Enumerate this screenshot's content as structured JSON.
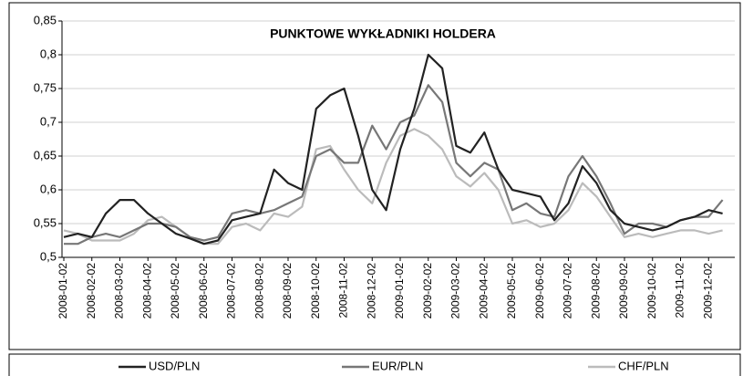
{
  "chart_data": {
    "type": "line",
    "title": "PUNKTOWE WYKŁADNIKI HOLDERA",
    "categories": [
      "2008-01-02",
      null,
      "2008-02-02",
      null,
      "2008-03-02",
      null,
      "2008-04-02",
      null,
      "2008-05-02",
      null,
      "2008-06-02",
      null,
      "2008-07-02",
      null,
      "2008-08-02",
      null,
      "2008-09-02",
      null,
      "2008-10-02",
      null,
      "2008-11-02",
      null,
      "2008-12-02",
      null,
      "2009-01-02",
      null,
      "2009-02-02",
      null,
      "2009-03-02",
      null,
      "2009-04-02",
      null,
      "2009-05-02",
      null,
      "2009-06-02",
      null,
      "2009-07-02",
      null,
      "2009-08-02",
      null,
      "2009-09-02",
      null,
      "2009-10-02",
      null,
      "2009-11-02",
      null,
      "2009-12-02",
      null
    ],
    "series": [
      {
        "name": "USD/PLN",
        "color": "#222222",
        "values": [
          0.53,
          0.535,
          0.53,
          0.565,
          0.585,
          0.585,
          0.565,
          0.55,
          0.535,
          0.528,
          0.52,
          0.525,
          0.555,
          0.56,
          0.565,
          0.63,
          0.61,
          0.6,
          0.72,
          0.74,
          0.75,
          0.68,
          0.6,
          0.57,
          0.66,
          0.72,
          0.8,
          0.78,
          0.665,
          0.655,
          0.685,
          0.63,
          0.6,
          0.595,
          0.59,
          0.555,
          0.58,
          0.635,
          0.61,
          0.57,
          0.55,
          0.545,
          0.54,
          0.545,
          0.555,
          0.56,
          0.57,
          0.565
        ]
      },
      {
        "name": "EUR/PLN",
        "color": "#777777",
        "values": [
          0.52,
          0.52,
          0.53,
          0.535,
          0.53,
          0.54,
          0.55,
          0.55,
          0.545,
          0.53,
          0.525,
          0.53,
          0.565,
          0.57,
          0.565,
          0.57,
          0.58,
          0.59,
          0.65,
          0.66,
          0.64,
          0.64,
          0.695,
          0.66,
          0.7,
          0.71,
          0.755,
          0.73,
          0.64,
          0.62,
          0.64,
          0.63,
          0.57,
          0.58,
          0.565,
          0.56,
          0.62,
          0.65,
          0.62,
          0.58,
          0.535,
          0.55,
          0.55,
          0.545,
          0.555,
          0.56,
          0.56,
          0.585
        ]
      },
      {
        "name": "CHF/PLN",
        "color": "#bbbbbb",
        "values": [
          0.54,
          0.535,
          0.525,
          0.525,
          0.525,
          0.535,
          0.555,
          0.56,
          0.545,
          0.53,
          0.52,
          0.52,
          0.545,
          0.55,
          0.54,
          0.565,
          0.56,
          0.575,
          0.66,
          0.665,
          0.63,
          0.6,
          0.58,
          0.64,
          0.68,
          0.69,
          0.68,
          0.66,
          0.62,
          0.605,
          0.625,
          0.6,
          0.55,
          0.555,
          0.545,
          0.55,
          0.57,
          0.61,
          0.59,
          0.56,
          0.53,
          0.535,
          0.53,
          0.535,
          0.54,
          0.54,
          0.535,
          0.54
        ]
      }
    ],
    "ylim": [
      0.5,
      0.85
    ],
    "yticks": [
      {
        "value": 0.5,
        "label": "0,5"
      },
      {
        "value": 0.55,
        "label": "0,55"
      },
      {
        "value": 0.6,
        "label": "0,6"
      },
      {
        "value": 0.65,
        "label": "0,65"
      },
      {
        "value": 0.7,
        "label": "0,7"
      },
      {
        "value": 0.75,
        "label": "0,75"
      },
      {
        "value": 0.8,
        "label": "0,8"
      },
      {
        "value": 0.85,
        "label": "0,85"
      }
    ],
    "grid": true,
    "legend": "bottom"
  }
}
